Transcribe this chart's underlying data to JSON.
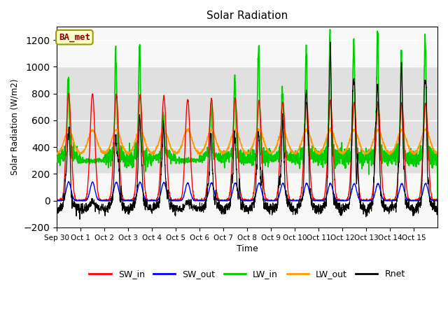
{
  "title": "Solar Radiation",
  "ylabel": "Solar Radiation (W/m2)",
  "xlabel": "Time",
  "ylim": [
    -200,
    1300
  ],
  "yticks": [
    -200,
    0,
    200,
    400,
    600,
    800,
    1000,
    1200
  ],
  "band_low": 200,
  "band_high": 1000,
  "band_color": "#e0e0e0",
  "n_days": 16,
  "pts_per_day": 144,
  "colors": {
    "SW_in": "#ff0000",
    "SW_out": "#0000ff",
    "LW_in": "#00cc00",
    "LW_out": "#ff9900",
    "Rnet": "#000000"
  },
  "linewidths": {
    "SW_in": 1.0,
    "SW_out": 1.0,
    "LW_in": 1.2,
    "LW_out": 1.2,
    "Rnet": 0.8
  },
  "label_box": "BA_met",
  "label_box_facecolor": "#ffffcc",
  "label_box_edgecolor": "#999900",
  "label_box_textcolor": "#880000",
  "xtick_labels": [
    "Sep 30",
    "Oct 1",
    "Oct 2",
    "Oct 3",
    "Oct 4",
    "Oct 5",
    "Oct 6",
    "Oct 7",
    "Oct 8",
    "Oct 9",
    "Oct 10",
    "Oct 11",
    "Oct 12",
    "Oct 13",
    "Oct 14",
    "Oct 15"
  ],
  "legend_entries": [
    "SW_in",
    "SW_out",
    "LW_in",
    "LW_out",
    "Rnet"
  ],
  "figsize": [
    6.4,
    4.8
  ],
  "dpi": 100
}
